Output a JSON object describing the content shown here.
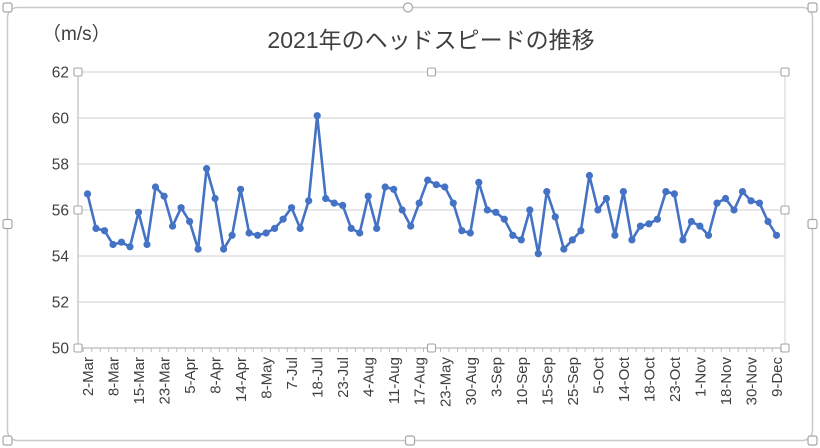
{
  "chart_data": {
    "type": "line",
    "title": "2021年のヘッドスピードの推移",
    "unit_label": "（m/s）",
    "xlabel": "",
    "ylabel": "m/s",
    "ylim": [
      50,
      62
    ],
    "ytick_step": 2,
    "ytick_labels": [
      "62",
      "60",
      "58",
      "56",
      "54",
      "52",
      "50"
    ],
    "grid": true,
    "legend": "none",
    "n_points": 82,
    "label_every": 3,
    "x_labels_shown": [
      "2-Mar",
      "8-Mar",
      "15-Mar",
      "23-Mar",
      "5-Apr",
      "8-Apr",
      "14-Apr",
      "8-May",
      "7-Jul",
      "18-Jul",
      "23-Jul",
      "4-Aug",
      "11-Aug",
      "17-Aug",
      "23-May",
      "30-Aug",
      "3-Sep",
      "10-Sep",
      "15-Sep",
      "25-Sep",
      "5-Oct",
      "14-Oct",
      "18-Oct",
      "23-Oct",
      "1-Nov",
      "18-Nov",
      "30-Nov",
      "9-Dec"
    ],
    "values": [
      56.7,
      55.2,
      55.1,
      54.5,
      54.6,
      54.4,
      55.9,
      54.5,
      57.0,
      56.6,
      55.3,
      56.1,
      55.5,
      54.3,
      57.8,
      56.5,
      54.3,
      54.9,
      56.9,
      55.0,
      54.9,
      55.0,
      55.2,
      55.6,
      56.1,
      55.2,
      56.4,
      60.1,
      56.5,
      56.3,
      56.2,
      55.2,
      55.0,
      56.6,
      55.2,
      57.0,
      56.9,
      56.0,
      55.3,
      56.3,
      57.3,
      57.1,
      57.0,
      56.3,
      55.1,
      55.0,
      57.2,
      56.0,
      55.9,
      55.6,
      54.9,
      54.7,
      56.0,
      54.1,
      56.8,
      55.7,
      54.3,
      54.7,
      55.1,
      57.5,
      56.0,
      56.5,
      54.9,
      56.8,
      54.7,
      55.3,
      55.4,
      55.6,
      56.8,
      56.7,
      54.7,
      55.5,
      55.3,
      54.9,
      56.3,
      56.5,
      56.0,
      56.8,
      56.4,
      56.3,
      55.5,
      54.9
    ]
  },
  "style": {
    "line_color": "#4472C4",
    "marker_color": "#4472C4",
    "grid_color": "#d9d9d9",
    "axis_color": "#bfbfbf",
    "text_color": "#404040",
    "selection_border_color": "#c9c9c9",
    "handle_border_color": "#a6a6a6",
    "handle_fill": "#ffffff"
  }
}
